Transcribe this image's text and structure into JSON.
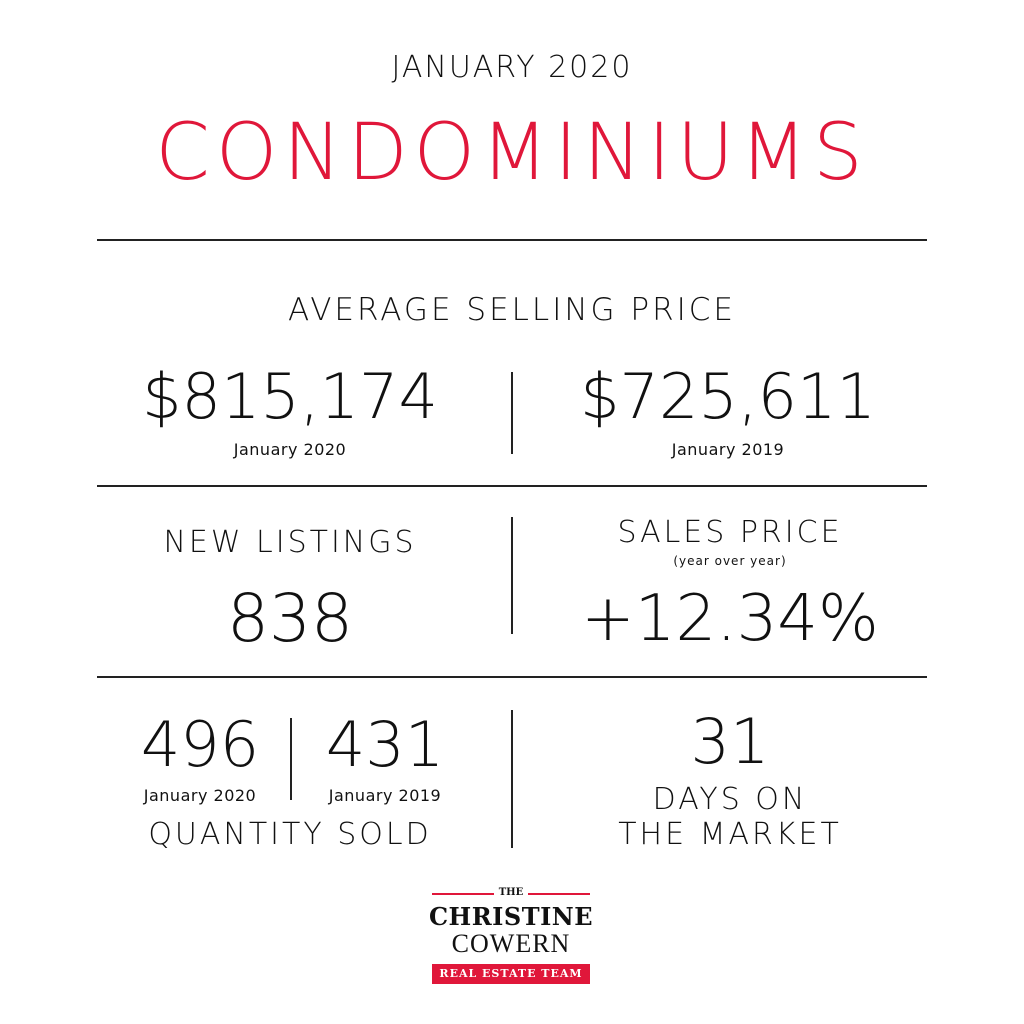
{
  "header": {
    "date": "JANUARY 2020",
    "title": "CONDOMINIUMS"
  },
  "avg_price": {
    "label": "AVERAGE SELLING PRICE",
    "current_value": "$815,174",
    "current_period": "January 2020",
    "previous_value": "$725,611",
    "previous_period": "January 2019"
  },
  "new_listings": {
    "label": "NEW LISTINGS",
    "value": "838"
  },
  "sales_price": {
    "label": "SALES PRICE",
    "sublabel": "(year over year)",
    "value": "+12.34%"
  },
  "quantity_sold": {
    "current_value": "496",
    "current_period": "January 2020",
    "previous_value": "431",
    "previous_period": "January 2019",
    "label": "QUANTITY SOLD"
  },
  "days_on_market": {
    "value": "31",
    "label_line1": "DAYS ON",
    "label_line2": "THE MARKET"
  },
  "logo": {
    "the": "THE",
    "line1": "CHRISTINE",
    "line2": "COWERN",
    "tagline": "REAL ESTATE TEAM"
  },
  "colors": {
    "accent": "#e0173a",
    "text": "#111111",
    "rule": "#222222"
  }
}
